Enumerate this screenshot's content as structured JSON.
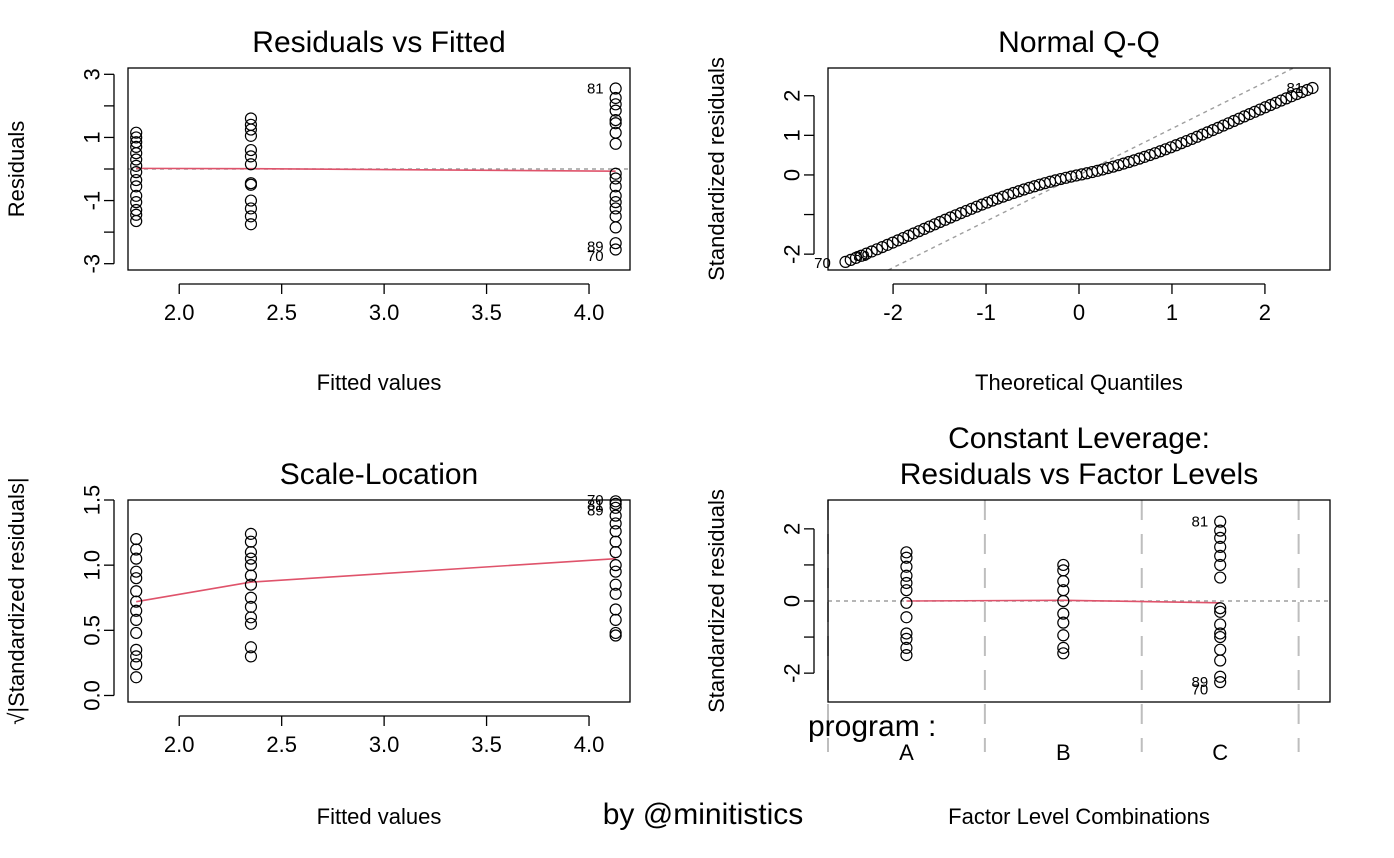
{
  "watermark": "by @minitistics",
  "chart_data": [
    {
      "id": "rvf",
      "type": "scatter",
      "title": "Residuals vs Fitted",
      "xlabel": "Fitted values",
      "ylabel": "Residuals",
      "xlim": [
        1.75,
        4.2
      ],
      "ylim": [
        -3.2,
        3.2
      ],
      "xticks": [
        2.0,
        2.5,
        3.0,
        3.5,
        4.0
      ],
      "xtick_labels": [
        "2.0",
        "2.5",
        "3.0",
        "3.5",
        "4.0"
      ],
      "yticks": [
        -3,
        -2,
        -1,
        0,
        1,
        2,
        3
      ],
      "ytick_labels": [
        "-3",
        "",
        "-1",
        "",
        "1",
        "",
        "3"
      ],
      "groups": [
        {
          "x": 1.79,
          "y": [
            -1.65,
            -1.45,
            -1.3,
            -1.05,
            -0.85,
            -0.55,
            -0.35,
            -0.1,
            0.1,
            0.3,
            0.5,
            0.7,
            0.85,
            1.0,
            1.15
          ]
        },
        {
          "x": 2.35,
          "y": [
            -1.75,
            -1.5,
            -1.25,
            -1.0,
            -0.5,
            -0.45,
            0.15,
            0.4,
            0.6,
            1.05,
            1.25,
            1.4,
            1.6
          ]
        },
        {
          "x": 4.13,
          "y": [
            -2.55,
            -2.35,
            -1.85,
            -1.5,
            -1.25,
            -1.05,
            -0.85,
            -0.55,
            -0.3,
            -0.15,
            0.8,
            1.15,
            1.45,
            1.55,
            1.85,
            2.05,
            2.25,
            2.55
          ]
        }
      ],
      "smooth": {
        "x": [
          1.79,
          2.35,
          4.13
        ],
        "y": [
          0.02,
          0.01,
          -0.07
        ]
      },
      "reference": {
        "kind": "hline",
        "value": 0
      },
      "point_labels": [
        {
          "text": "81",
          "x": 4.13,
          "y": 2.55
        },
        {
          "text": "89",
          "x": 4.13,
          "y": -2.45
        },
        {
          "text": "70",
          "x": 4.13,
          "y": -2.75
        }
      ]
    },
    {
      "id": "qq",
      "type": "scatter",
      "title": "Normal Q-Q",
      "xlabel": "Theoretical Quantiles",
      "ylabel": "Standardized residuals",
      "xlim": [
        -2.7,
        2.7
      ],
      "ylim": [
        -2.4,
        2.7
      ],
      "xticks": [
        -2,
        -1,
        0,
        1,
        2
      ],
      "xtick_labels": [
        "-2",
        "-1",
        "0",
        "1",
        "2"
      ],
      "yticks": [
        -2,
        -1,
        0,
        1,
        2
      ],
      "ytick_labels": [
        "-2",
        "",
        "0",
        "1",
        "2"
      ],
      "n_points": 90,
      "theoretical_range": [
        -2.54,
        2.54
      ],
      "residual_range": [
        -2.22,
        2.22
      ],
      "reference": {
        "kind": "line",
        "intercept": 0,
        "slope": 1.17
      },
      "point_labels": [
        {
          "text": "70",
          "x": -2.54,
          "y": -2.22
        },
        {
          "text": "89",
          "x": -2.12,
          "y": -2.05
        },
        {
          "text": "81",
          "x": 2.54,
          "y": 2.2
        }
      ]
    },
    {
      "id": "sl",
      "type": "scatter",
      "title": "Scale-Location",
      "xlabel": "Fitted values",
      "ylabel": "√|Standardized residuals|",
      "xlim": [
        1.75,
        4.2
      ],
      "ylim": [
        -0.05,
        1.5
      ],
      "xticks": [
        2.0,
        2.5,
        3.0,
        3.5,
        4.0
      ],
      "xtick_labels": [
        "2.0",
        "2.5",
        "3.0",
        "3.5",
        "4.0"
      ],
      "yticks": [
        0.0,
        0.5,
        1.0,
        1.5
      ],
      "ytick_labels": [
        "0.0",
        "0.5",
        "1.0",
        "1.5"
      ],
      "groups": [
        {
          "x": 1.79,
          "y": [
            0.14,
            0.24,
            0.3,
            0.35,
            0.48,
            0.58,
            0.65,
            0.72,
            0.8,
            0.9,
            0.95,
            1.05,
            1.12,
            1.2
          ]
        },
        {
          "x": 2.35,
          "y": [
            0.3,
            0.37,
            0.55,
            0.6,
            0.68,
            0.75,
            0.85,
            0.92,
            1.0,
            1.05,
            1.1,
            1.18,
            1.24
          ]
        },
        {
          "x": 4.13,
          "y": [
            0.46,
            0.48,
            0.58,
            0.66,
            0.78,
            0.85,
            0.95,
            1.0,
            1.1,
            1.18,
            1.26,
            1.32,
            1.38,
            1.44,
            1.47,
            1.49
          ]
        }
      ],
      "smooth": {
        "x": [
          1.79,
          2.35,
          4.13
        ],
        "y": [
          0.72,
          0.87,
          1.05
        ]
      },
      "point_labels": [
        {
          "text": "70",
          "x": 4.13,
          "y": 1.5
        },
        {
          "text": "81",
          "x": 4.13,
          "y": 1.46
        },
        {
          "text": "89",
          "x": 4.13,
          "y": 1.42
        }
      ]
    },
    {
      "id": "rvl",
      "type": "scatter",
      "title": "Constant Leverage:",
      "title2": "Residuals vs Factor Levels",
      "xlabel": "Factor Level Combinations",
      "ylabel": "Standardized residuals",
      "factor_label": "program :",
      "xlim": [
        0.5,
        3.7
      ],
      "ylim": [
        -2.8,
        2.8
      ],
      "categories": [
        "A",
        "B",
        "C"
      ],
      "category_x": [
        1,
        2,
        3
      ],
      "separators": [
        0.5,
        1.5,
        2.5,
        3.5
      ],
      "yticks": [
        -2,
        -1,
        0,
        1,
        2
      ],
      "ytick_labels": [
        "-2",
        "",
        "0",
        "",
        "2"
      ],
      "groups": [
        {
          "x": 1,
          "y": [
            -1.5,
            -1.3,
            -1.05,
            -0.9,
            -0.45,
            -0.05,
            0.3,
            0.5,
            0.7,
            0.95,
            1.2,
            1.35
          ]
        },
        {
          "x": 2,
          "y": [
            -1.45,
            -1.3,
            -0.95,
            -0.6,
            -0.35,
            0.0,
            0.3,
            0.55,
            0.85,
            1.0
          ]
        },
        {
          "x": 3,
          "y": [
            -2.25,
            -2.1,
            -1.65,
            -1.35,
            -1.0,
            -0.9,
            -0.65,
            -0.3,
            -0.2,
            0.65,
            1.0,
            1.25,
            1.5,
            1.75,
            1.95,
            2.2
          ]
        }
      ],
      "smooth": {
        "x": [
          1,
          2,
          3
        ],
        "y": [
          0.0,
          0.02,
          -0.05
        ]
      },
      "reference": {
        "kind": "hline",
        "value": 0
      },
      "point_labels": [
        {
          "text": "81",
          "x": 3,
          "y": 2.2
        },
        {
          "text": "89",
          "x": 3,
          "y": -2.25
        },
        {
          "text": "70",
          "x": 3,
          "y": -2.45
        }
      ]
    }
  ]
}
